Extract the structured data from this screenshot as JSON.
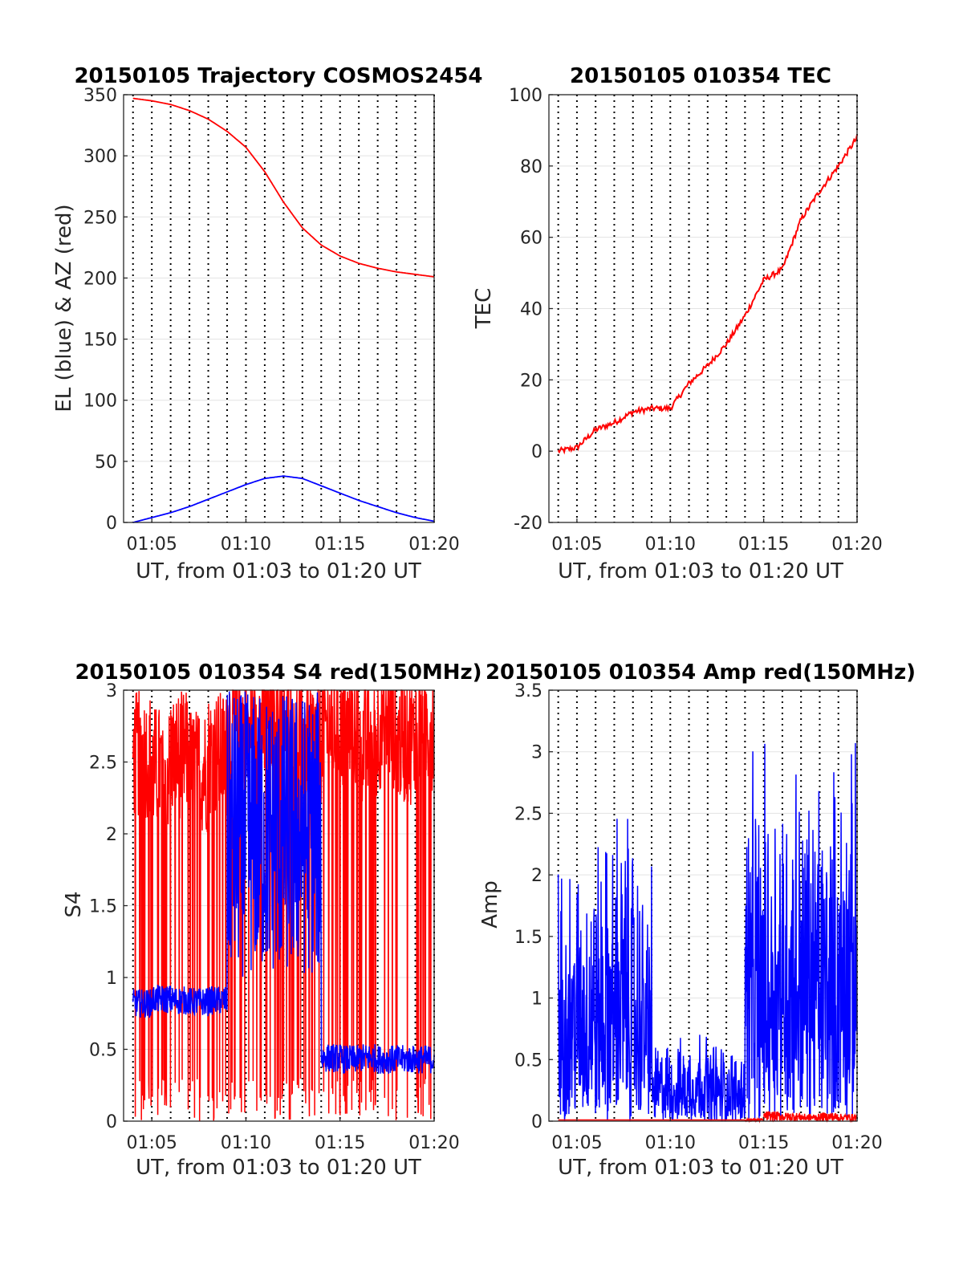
{
  "chart_data": [
    {
      "type": "line",
      "title": "20150105 Trajectory COSMOS2454",
      "xlabel": "UT, from 01:03 to 01:20 UT",
      "ylabel": "EL (blue) & AZ (red)",
      "xlim": [
        "01:03:30",
        "01:20:00"
      ],
      "ylim": [
        0,
        350
      ],
      "xticks": [
        "01:05",
        "01:10",
        "01:15",
        "01:20"
      ],
      "yticks": [
        0,
        50,
        100,
        150,
        200,
        250,
        300,
        350
      ],
      "grid": "horizontal solid, vertical dotted every minute",
      "x": [
        "01:04",
        "01:05",
        "01:06",
        "01:07",
        "01:08",
        "01:09",
        "01:10",
        "01:11",
        "01:12",
        "01:13",
        "01:14",
        "01:15",
        "01:16",
        "01:17",
        "01:18",
        "01:19",
        "01:20"
      ],
      "series": [
        {
          "color": "#ff0000",
          "values": [
            347,
            345,
            342,
            337,
            330,
            320,
            307,
            287,
            262,
            241,
            227,
            218,
            212,
            208,
            205,
            203,
            201
          ]
        },
        {
          "color": "#0000ff",
          "values": [
            0,
            4,
            8,
            13,
            19,
            25,
            31,
            36,
            38,
            36,
            30,
            24,
            18,
            13,
            8,
            4,
            1
          ]
        }
      ]
    },
    {
      "type": "line",
      "title": "20150105 010354 TEC",
      "xlabel": "UT, from 01:03 to 01:20 UT",
      "ylabel": "TEC",
      "xlim": [
        "01:03:30",
        "01:20:00"
      ],
      "ylim": [
        -20,
        100
      ],
      "xticks": [
        "01:05",
        "01:10",
        "01:15",
        "01:20"
      ],
      "yticks": [
        -20,
        0,
        20,
        40,
        60,
        80,
        100
      ],
      "grid": "horizontal solid, vertical dotted every minute",
      "x": [
        "01:04",
        "01:05",
        "01:06",
        "01:07",
        "01:08",
        "01:09",
        "01:10",
        "01:11",
        "01:12",
        "01:13",
        "01:14",
        "01:15",
        "01:16",
        "01:17",
        "01:18",
        "01:19",
        "01:20"
      ],
      "series": [
        {
          "color": "#ff0000",
          "values": [
            0,
            1,
            6,
            8,
            11,
            12,
            12,
            19,
            24,
            30,
            38,
            48,
            51,
            65,
            73,
            80,
            88
          ]
        }
      ]
    },
    {
      "type": "line",
      "title": "20150105 010354 S4 red(150MHz)",
      "xlabel": "UT, from 01:03 to 01:20 UT",
      "ylabel": "S4",
      "xlim": [
        "01:03:30",
        "01:20:00"
      ],
      "ylim": [
        0,
        3
      ],
      "xticks": [
        "01:05",
        "01:10",
        "01:15",
        "01:20"
      ],
      "yticks": [
        0,
        0.5,
        1,
        1.5,
        2,
        2.5,
        3
      ],
      "grid": "horizontal solid, vertical dotted every minute",
      "x": [
        "01:04",
        "01:05",
        "01:06",
        "01:07",
        "01:08",
        "01:09",
        "01:10",
        "01:11",
        "01:12",
        "01:13",
        "01:14",
        "01:15",
        "01:16",
        "01:17",
        "01:18",
        "01:19",
        "01:20"
      ],
      "series": [
        {
          "color": "#ff0000",
          "values": [
            2.7,
            2.6,
            2.7,
            2.6,
            2.7,
            2.9,
            2.9,
            3.0,
            2.9,
            2.8,
            2.9,
            2.9,
            2.8,
            2.9,
            2.8,
            2.9,
            2.8
          ]
        },
        {
          "color": "#0000ff",
          "values": [
            0.82,
            0.85,
            0.84,
            0.83,
            0.84,
            2.2,
            2.4,
            2.5,
            2.3,
            2.6,
            0.44,
            0.43,
            0.44,
            0.43,
            0.43,
            0.43,
            0.42
          ]
        }
      ]
    },
    {
      "type": "line",
      "title": "20150105 010354 Amp red(150MHz)",
      "xlabel": "UT, from 01:03 to 01:20 UT",
      "ylabel": "Amp",
      "xlim": [
        "01:03:30",
        "01:20:00"
      ],
      "ylim": [
        0,
        3.5
      ],
      "xticks": [
        "01:05",
        "01:10",
        "01:15",
        "01:20"
      ],
      "yticks": [
        0,
        0.5,
        1,
        1.5,
        2,
        2.5,
        3,
        3.5
      ],
      "grid": "horizontal solid, vertical dotted every minute",
      "x": [
        "01:04",
        "01:05",
        "01:06",
        "01:07",
        "01:08",
        "01:09",
        "01:10",
        "01:11",
        "01:12",
        "01:13",
        "01:14",
        "01:15",
        "01:16",
        "01:17",
        "01:18",
        "01:19",
        "01:20"
      ],
      "series": [
        {
          "color": "#0000ff",
          "values": [
            1.9,
            2.0,
            2.1,
            2.3,
            1.9,
            0.6,
            0.6,
            0.7,
            0.6,
            0.55,
            2.6,
            2.7,
            2.7,
            2.6,
            2.6,
            2.7,
            2.5
          ]
        },
        {
          "color": "#ff0000",
          "values": [
            0,
            0,
            0,
            0,
            0,
            0,
            0,
            0,
            0,
            0,
            0.02,
            0.08,
            0.07,
            0.06,
            0.07,
            0.06,
            0.06
          ]
        }
      ]
    }
  ]
}
